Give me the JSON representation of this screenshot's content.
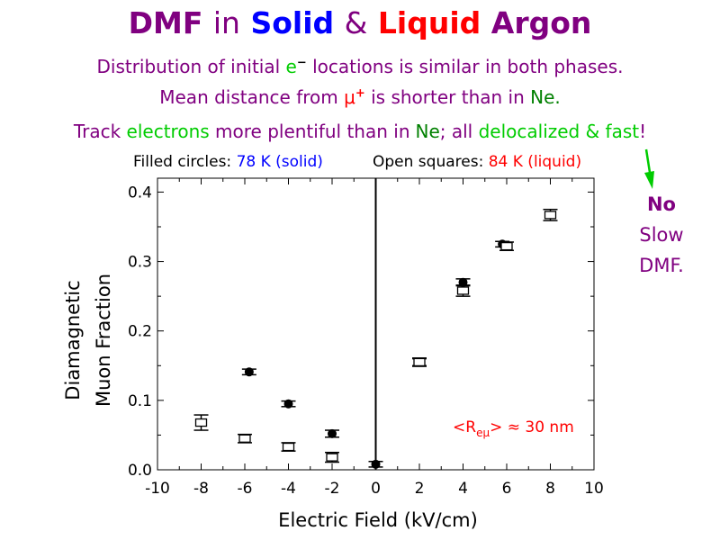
{
  "colors": {
    "purple": "#800080",
    "blue": "#0000ff",
    "red": "#ff0000",
    "green": "#00cc00",
    "black": "#000000"
  },
  "title": {
    "part1": "DMF",
    "part2": "in",
    "part3": "Solid",
    "part4": "&",
    "part5": "Liquid",
    "part6": "Argon"
  },
  "lines": {
    "l1_a": "Distribution of initial",
    "l1_b": "e",
    "l1_sup": "−",
    "l1_c": "locations is similar in both phases.",
    "l2_a": "Mean distance from",
    "l2_b": "μ",
    "l2_sup": "+",
    "l2_c": "is shorter than in",
    "l2_d": "Ne.",
    "l3_a": "Track",
    "l3_b": "electrons",
    "l3_c": "more plentiful than in",
    "l3_d": "Ne",
    "l3_e": "; all",
    "l3_f": "delocalized & fast",
    "l3_g": "!"
  },
  "legend": {
    "filled_label": "Filled circles:",
    "filled_value": "78 K (solid)",
    "open_label": "Open squares:",
    "open_value": "84 K (liquid)"
  },
  "side_note": {
    "line1": "No",
    "line2": "Slow",
    "line3": "DMF."
  },
  "annotation": {
    "prefix": "<R",
    "sub": "eμ",
    "suffix": "> ≈ 30 nm"
  },
  "chart_data": {
    "type": "scatter",
    "xlabel": "Electric Field (kV/cm)",
    "ylabel_line1": "Diamagnetic",
    "ylabel_line2": "Muon Fraction",
    "xlim": [
      -10,
      10
    ],
    "ylim": [
      0,
      0.42
    ],
    "x_ticks": [
      -10,
      -8,
      -6,
      -4,
      -2,
      0,
      2,
      4,
      6,
      8,
      10
    ],
    "y_ticks": [
      0.0,
      0.1,
      0.2,
      0.3,
      0.4
    ],
    "x_tick_labels": [
      "-10",
      "-8",
      "-6",
      "-4",
      "-2",
      "0",
      "2",
      "4",
      "6",
      "8",
      "10"
    ],
    "y_tick_labels": [
      "0.0",
      "0.1",
      "0.2",
      "0.3",
      "0.4"
    ],
    "series": [
      {
        "name": "78 K (solid)",
        "marker": "filled-circle",
        "points": [
          {
            "x": -5.8,
            "y": 0.141,
            "err": 0.004
          },
          {
            "x": -4.0,
            "y": 0.095,
            "err": 0.004
          },
          {
            "x": -2.0,
            "y": 0.052,
            "err": 0.005
          },
          {
            "x": 0.0,
            "y": 0.008,
            "err": 0.004
          },
          {
            "x": 2.0,
            "y": 0.155,
            "err": 0.005
          },
          {
            "x": 4.0,
            "y": 0.27,
            "err": 0.005
          },
          {
            "x": 5.8,
            "y": 0.325,
            "err": 0.004
          }
        ]
      },
      {
        "name": "84 K (liquid)",
        "marker": "open-square",
        "points": [
          {
            "x": -8.0,
            "y": 0.068,
            "err": 0.011
          },
          {
            "x": -6.0,
            "y": 0.045,
            "err": 0.006
          },
          {
            "x": -4.0,
            "y": 0.033,
            "err": 0.006
          },
          {
            "x": -2.0,
            "y": 0.018,
            "err": 0.007
          },
          {
            "x": 2.0,
            "y": 0.155,
            "err": 0.006
          },
          {
            "x": 4.0,
            "y": 0.258,
            "err": 0.008
          },
          {
            "x": 6.0,
            "y": 0.322,
            "err": 0.006
          },
          {
            "x": 8.0,
            "y": 0.367,
            "err": 0.008
          }
        ]
      }
    ],
    "vertical_line_at_x": 0
  }
}
